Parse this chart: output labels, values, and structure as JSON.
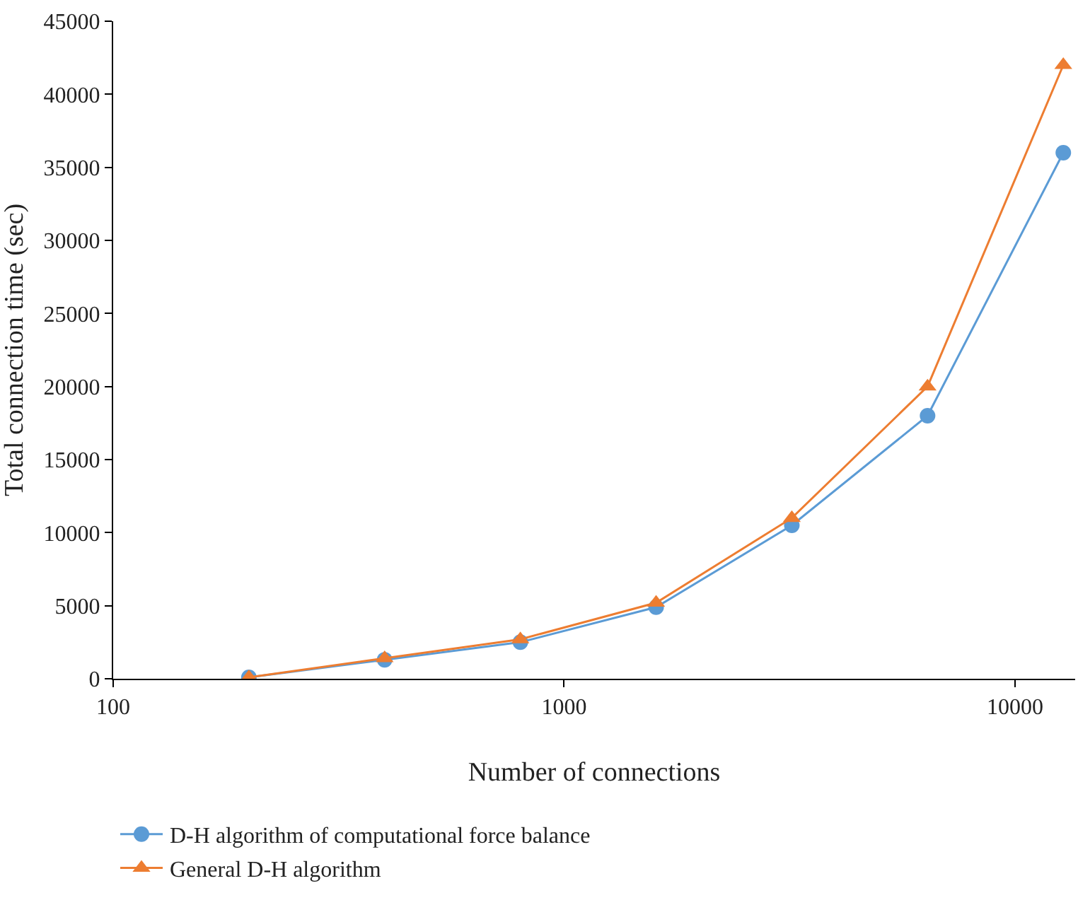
{
  "chart_data": {
    "type": "line",
    "xlabel": "Number of connections",
    "ylabel": "Total connection time (sec)",
    "log": "x",
    "x": [
      200,
      400,
      800,
      1600,
      3200,
      6400,
      12800
    ],
    "series": [
      {
        "name": "D-H algorithm of computational force balance",
        "color": "#5b9bd5",
        "marker": "circle",
        "values": [
          100,
          1300,
          2500,
          4900,
          10500,
          18000,
          36000
        ]
      },
      {
        "name": "General D-H algorithm",
        "color": "#ed7d31",
        "marker": "triangle",
        "values": [
          100,
          1400,
          2700,
          5200,
          11000,
          20000,
          42000
        ]
      }
    ],
    "xlim": [
      100,
      13600
    ],
    "xticks": [
      100,
      1000,
      10000
    ],
    "ylim": [
      0,
      45000
    ],
    "yticks": [
      0,
      5000,
      10000,
      15000,
      20000,
      25000,
      30000,
      35000,
      40000,
      45000
    ],
    "legend": "bottom",
    "line_style": "solid"
  }
}
